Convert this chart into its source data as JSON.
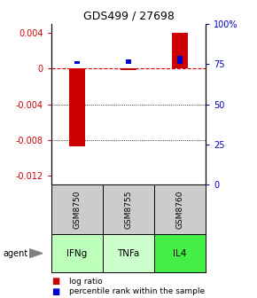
{
  "title": "GDS499 / 27698",
  "samples": [
    "GSM8750",
    "GSM8755",
    "GSM8760"
  ],
  "agents": [
    "IFNg",
    "TNFa",
    "IL4"
  ],
  "log_ratios": [
    -0.0087,
    -0.0002,
    0.004
  ],
  "percentile_ranks": [
    0.77,
    0.78,
    0.8
  ],
  "ylim_left": [
    -0.013,
    0.005
  ],
  "ylim_right": [
    0.0,
    1.0
  ],
  "yticks_left": [
    -0.012,
    -0.008,
    -0.004,
    0.0,
    0.004
  ],
  "ytick_labels_left": [
    "-0.012",
    "-0.008",
    "-0.004",
    "0",
    "0.004"
  ],
  "yticks_right": [
    0.0,
    0.25,
    0.5,
    0.75,
    1.0
  ],
  "ytick_labels_right": [
    "0",
    "25",
    "50",
    "75",
    "100%"
  ],
  "bar_color_log": "#cc0000",
  "bar_color_pct": "#0000cc",
  "agent_colors": [
    "#bbffbb",
    "#ccffcc",
    "#44ee44"
  ],
  "sample_bg": "#cccccc",
  "zero_line_color": "#cc0000",
  "log_bar_width": 0.3,
  "pct_bar_width": 0.1
}
